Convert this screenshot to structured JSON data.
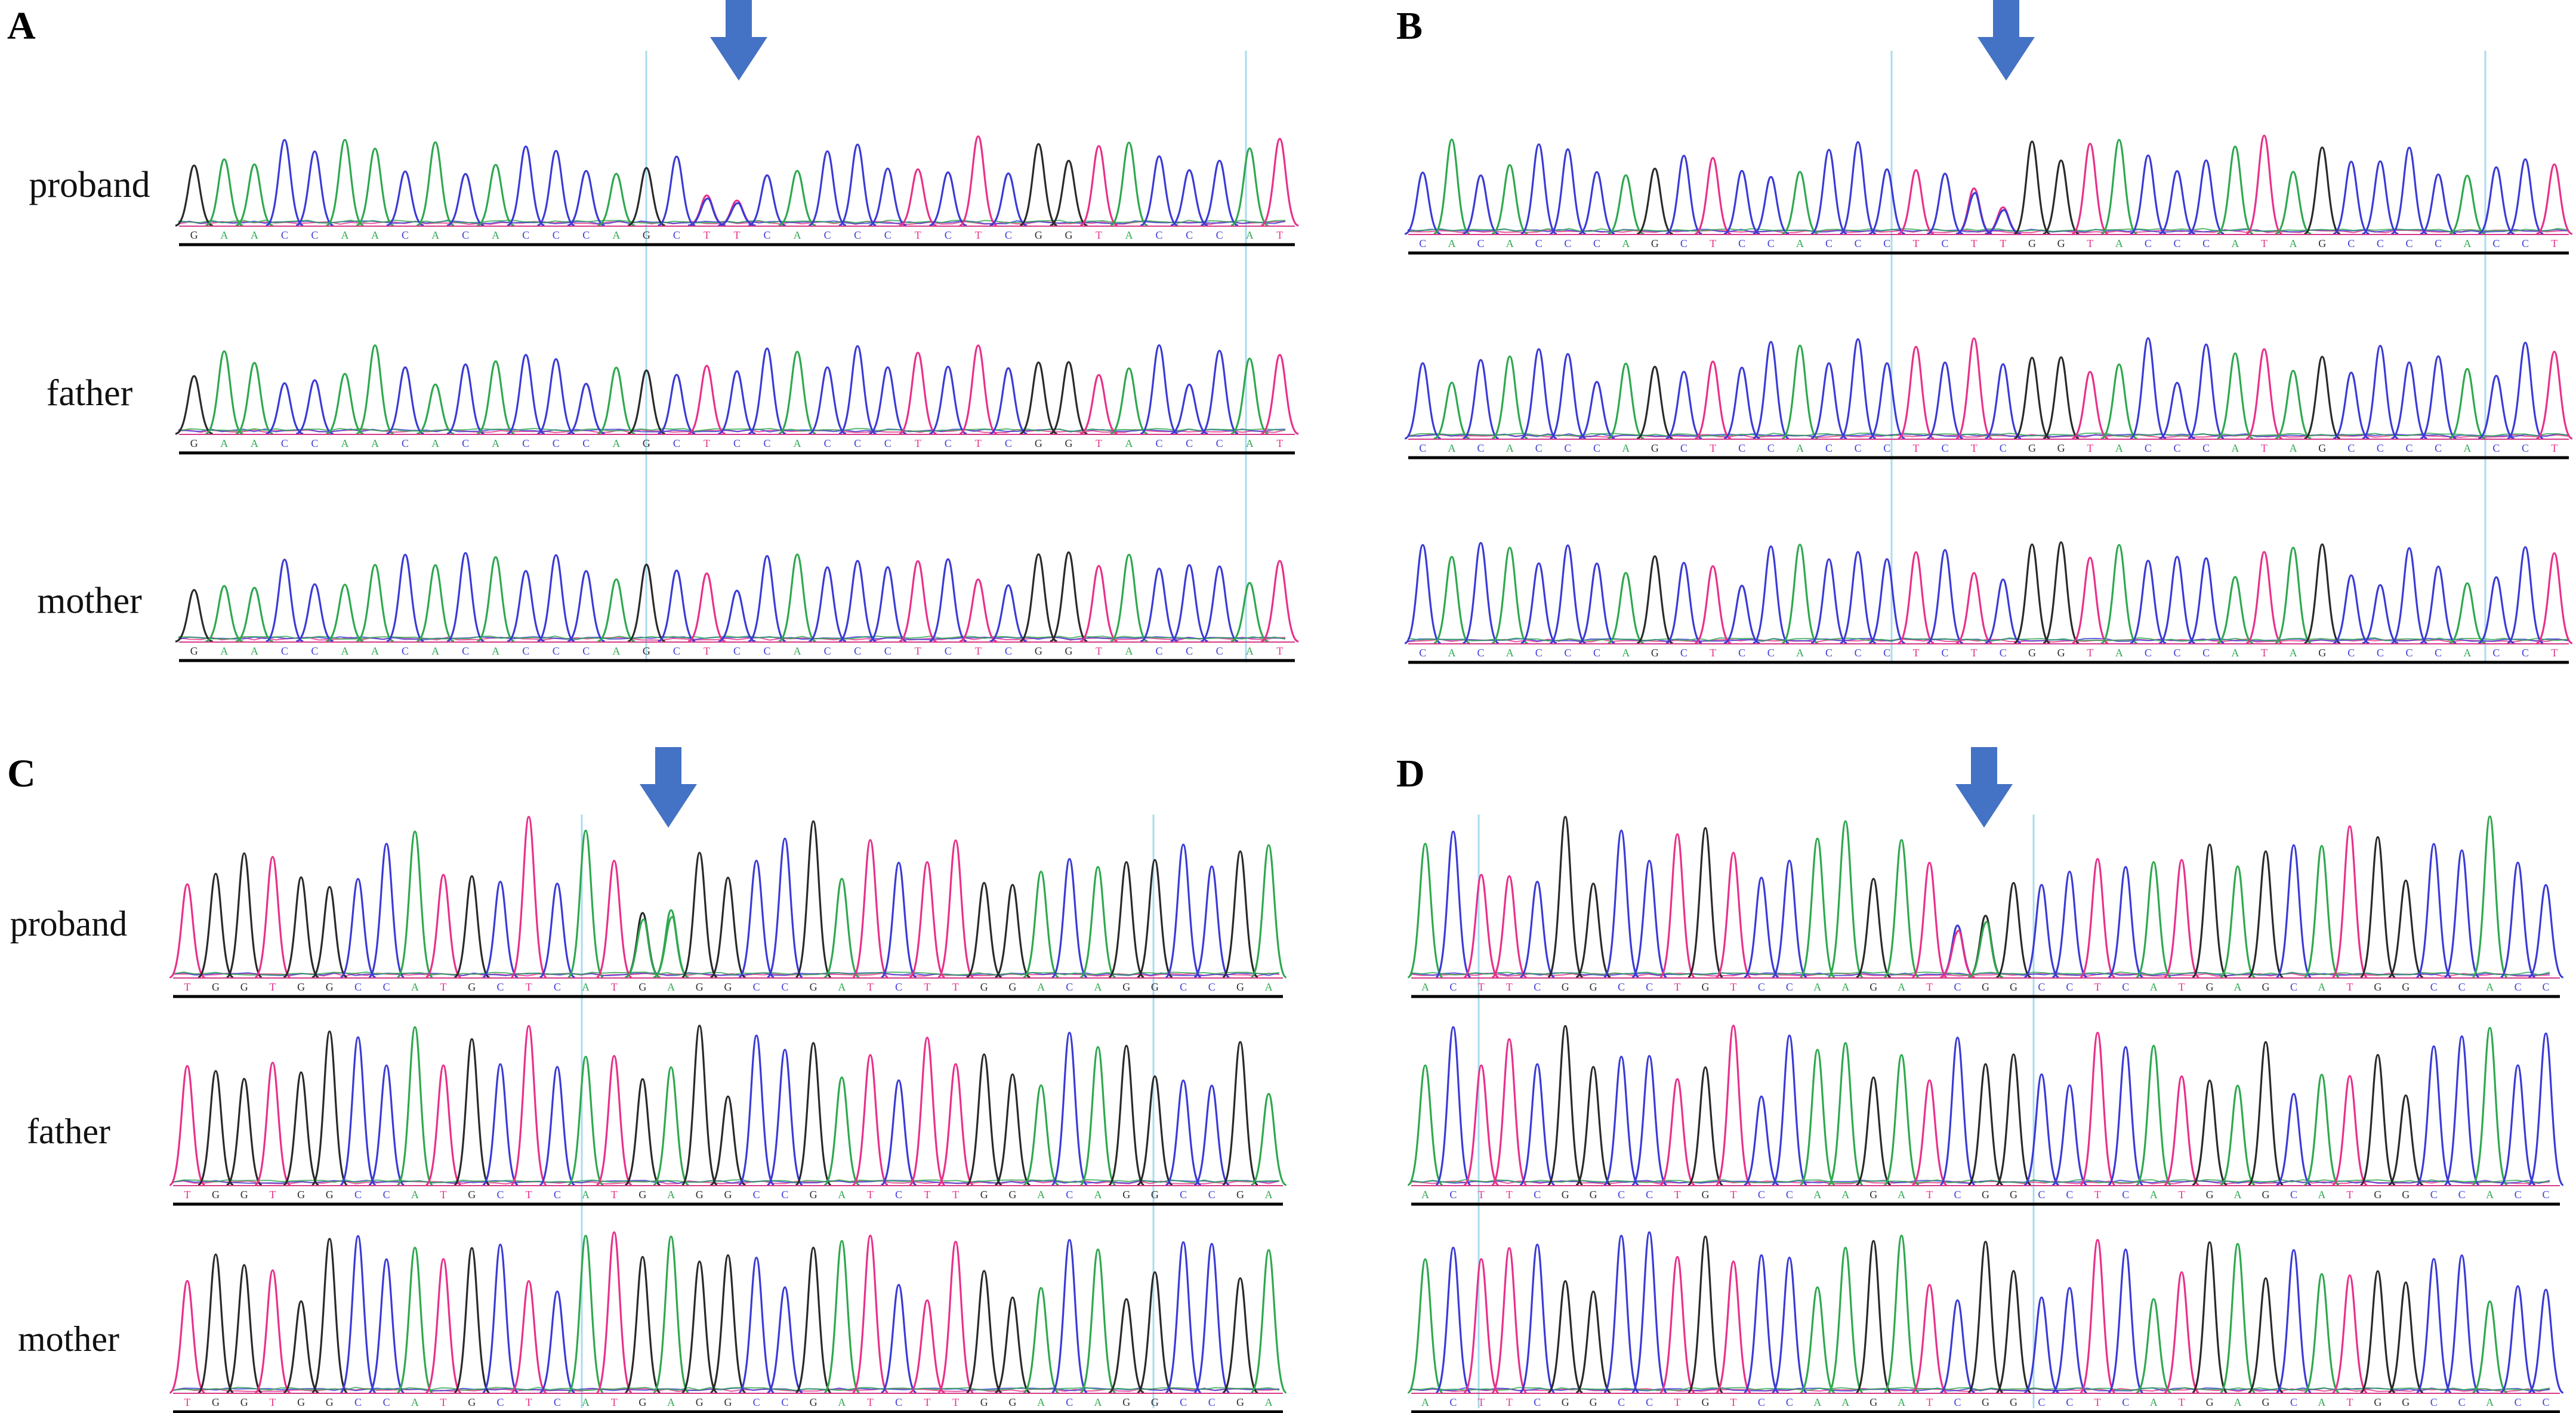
{
  "figure": {
    "panels": [
      {
        "id": "A",
        "letter": "A",
        "tracks": [
          {
            "label": "proband",
            "seq": "GAACCAACACACCCAGCTTCACCCTCTCGGTACCCAT",
            "hets": [
              17,
              18
            ]
          },
          {
            "label": "father",
            "seq": "GAACCAACACACCCAGCTCCACCCTCTCGGTACCCAT",
            "hets": []
          },
          {
            "label": "mother",
            "seq": "GAACCAACACACCCAGCTCCACCCTCTCGGTACCCAT",
            "hets": []
          }
        ]
      },
      {
        "id": "B",
        "letter": "B",
        "tracks": [
          {
            "label": "",
            "seq": "CACACCCAGCTCCACCCTCTTGGTACCCATAGCCCCACCT",
            "hets": [
              19,
              20
            ]
          },
          {
            "label": "",
            "seq": "CACACCCAGCTCCACCCTCTCGGTACCCATAGCCCCACCT",
            "hets": []
          },
          {
            "label": "",
            "seq": "CACACCCAGCTCCACCCTCTCGGTACCCATAGCCCCACCT",
            "hets": []
          }
        ]
      },
      {
        "id": "C",
        "letter": "C",
        "tracks": [
          {
            "label": "proband",
            "seq": "TGGTGGCCATGCTCATGAGGCCGATCTTGGACAGGCCGA",
            "hets": [
              16,
              17
            ]
          },
          {
            "label": "father",
            "seq": "TGGTGGCCATGCTCATGAGGCCGATCTTGGACAGGCCGA",
            "hets": []
          },
          {
            "label": "mother",
            "seq": "TGGTGGCCATGCTCATGAGGCCGATCTTGGACAGGCCGA",
            "hets": []
          }
        ]
      },
      {
        "id": "D",
        "letter": "D",
        "tracks": [
          {
            "label": "",
            "seq": "ACTTCGGCCTGTCCAAGATCGGCCTCATGAGCATGGCCACC",
            "hets": [
              19,
              20
            ]
          },
          {
            "label": "",
            "seq": "ACTTCGGCCTGTCCAAGATCGGCCTCATGAGCATGGCCACC",
            "hets": []
          },
          {
            "label": "",
            "seq": "ACTTCGGCCTGTCCAAGATCGGCCTCATGAGCATGGCCACC",
            "hets": []
          }
        ]
      }
    ],
    "base_colors": {
      "A": "#2fa84f",
      "C": "#3b3bd6",
      "G": "#2a2a2a",
      "T": "#e8318a"
    },
    "arrow_color": "#4472c4",
    "marker_line_color": "#a8dcef",
    "baseline_color": "#000000"
  }
}
